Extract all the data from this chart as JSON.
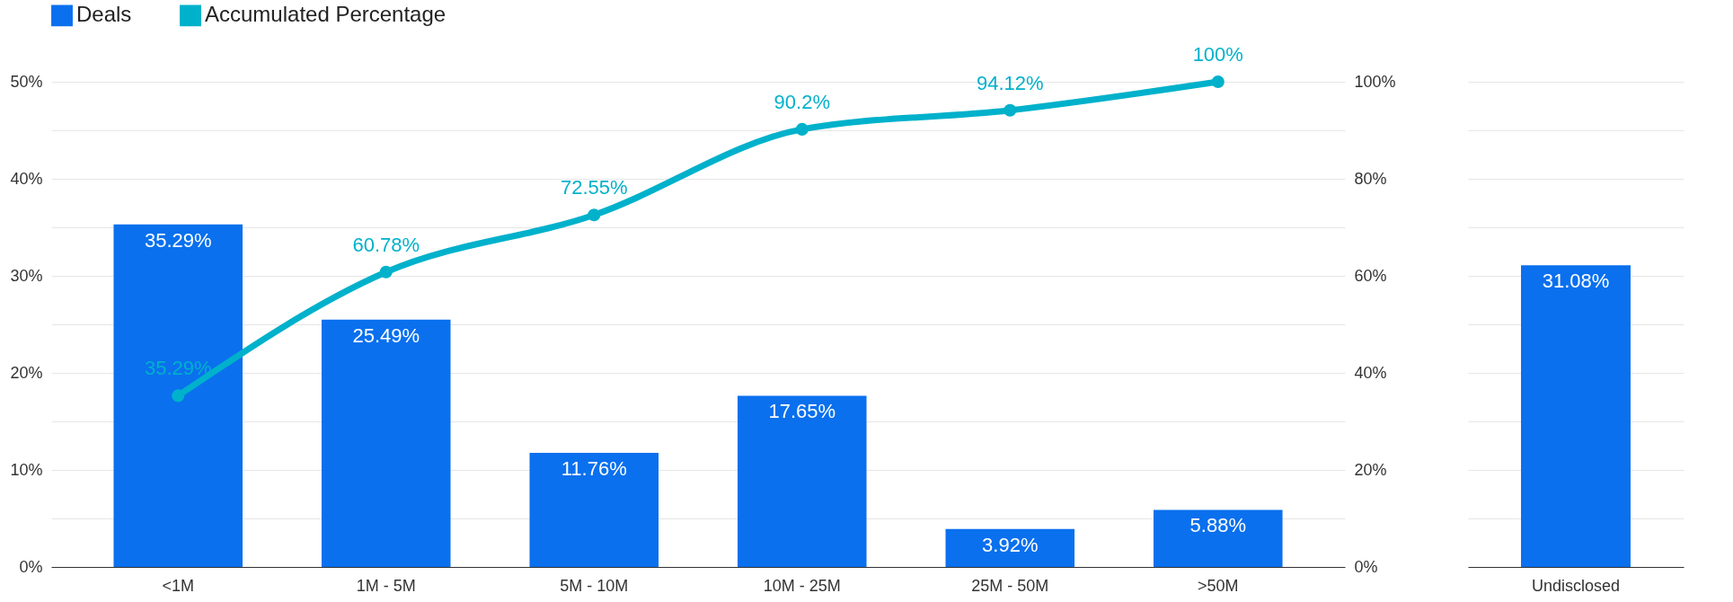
{
  "chart_data": [
    {
      "type": "bar",
      "categories": [
        "<1M",
        "1M - 5M",
        "5M - 10M",
        "10M - 25M",
        "25M - 50M",
        ">50M"
      ],
      "series": [
        {
          "name": "Deals",
          "type": "bar",
          "color": "#0a70ee",
          "values": [
            35.29,
            25.49,
            11.76,
            17.65,
            3.92,
            5.88
          ],
          "value_labels": [
            "35.29%",
            "25.49%",
            "11.76%",
            "17.65%",
            "3.92%",
            "5.88%"
          ]
        },
        {
          "name": "Accumulated Percentage",
          "type": "line",
          "axis": "y2",
          "color": "#00b1cb",
          "marker": "circle",
          "values": [
            35.29,
            60.78,
            72.55,
            90.2,
            94.12,
            100
          ],
          "value_labels": [
            "35.29%",
            "60.78%",
            "72.55%",
            "90.2%",
            "94.12%",
            "100%"
          ]
        }
      ],
      "ylim": [
        0,
        50
      ],
      "yticks": [
        {
          "value": 0,
          "label": "0%"
        },
        {
          "value": 5,
          "label": null
        },
        {
          "value": 10,
          "label": "10%"
        },
        {
          "value": 15,
          "label": null
        },
        {
          "value": 20,
          "label": "20%"
        },
        {
          "value": 25,
          "label": null
        },
        {
          "value": 30,
          "label": "30%"
        },
        {
          "value": 35,
          "label": null
        },
        {
          "value": 40,
          "label": "40%"
        },
        {
          "value": 45,
          "label": null
        },
        {
          "value": 50,
          "label": "50%"
        }
      ],
      "y2lim": [
        0,
        100
      ],
      "y2ticks": [
        {
          "value": 0,
          "label": "0%"
        },
        {
          "value": 20,
          "label": "20%"
        },
        {
          "value": 40,
          "label": "40%"
        },
        {
          "value": 60,
          "label": "60%"
        },
        {
          "value": 80,
          "label": "80%"
        },
        {
          "value": 100,
          "label": "100%"
        }
      ],
      "grid": "y",
      "legend": "top"
    },
    {
      "type": "bar",
      "categories": [
        "Undisclosed"
      ],
      "color": "#0a70ee",
      "values": [
        31.08
      ],
      "value_labels": [
        "31.08%"
      ],
      "ylim": [
        0,
        50
      ],
      "yticks": [
        {
          "value": 0,
          "label": null
        },
        {
          "value": 5,
          "label": null
        },
        {
          "value": 10,
          "label": null
        },
        {
          "value": 15,
          "label": null
        },
        {
          "value": 20,
          "label": null
        },
        {
          "value": 25,
          "label": null
        },
        {
          "value": 30,
          "label": null
        },
        {
          "value": 35,
          "label": null
        },
        {
          "value": 40,
          "label": null
        },
        {
          "value": 45,
          "label": null
        },
        {
          "value": 50,
          "label": null
        }
      ],
      "grid": "y",
      "tick_labels": "x"
    }
  ]
}
